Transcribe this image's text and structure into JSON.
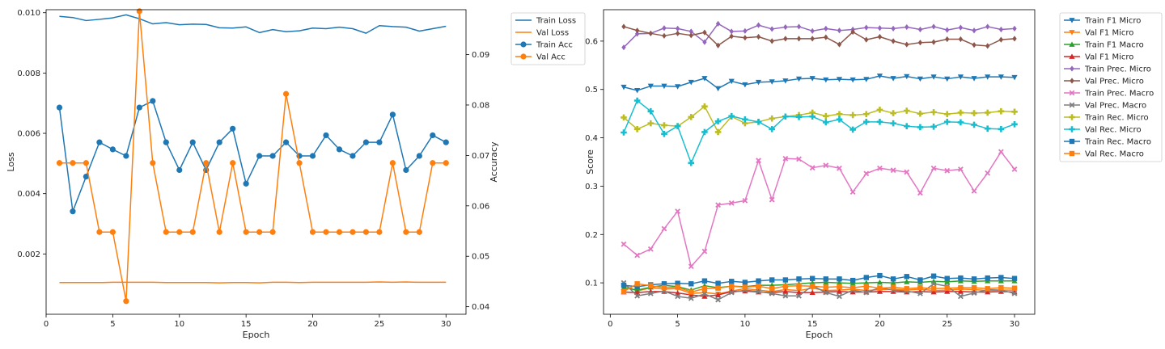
{
  "chart_data": [
    {
      "type": "line",
      "xlabel": "Epoch",
      "ylabel": "Loss",
      "y2label": "Accuracy",
      "xlim": [
        0,
        31.5
      ],
      "ylim": [
        0.0,
        0.0101
      ],
      "y2lim": [
        0.0385,
        0.0989
      ],
      "xticks": [
        0,
        5,
        10,
        15,
        20,
        25,
        30
      ],
      "yticks": [
        0.002,
        0.004,
        0.006,
        0.008,
        0.01
      ],
      "ytick_labels": [
        "0.002",
        "0.004",
        "0.006",
        "0.008",
        "0.010"
      ],
      "y2ticks": [
        0.04,
        0.05,
        0.06,
        0.07,
        0.08,
        0.09
      ],
      "y2tick_labels": [
        "0.04",
        "0.05",
        "0.06",
        "0.07",
        "0.08",
        "0.09"
      ],
      "legend_position": "outside-right",
      "x": [
        1,
        2,
        3,
        4,
        5,
        6,
        7,
        8,
        9,
        10,
        11,
        12,
        13,
        14,
        15,
        16,
        17,
        18,
        19,
        20,
        21,
        22,
        23,
        24,
        25,
        26,
        27,
        28,
        29,
        30
      ],
      "series": [
        {
          "name": "Train Loss",
          "axis": "left",
          "color": "#1f77b4",
          "marker": "none",
          "values": [
            0.00988,
            0.00984,
            0.00974,
            0.00978,
            0.00983,
            0.00993,
            0.0098,
            0.00963,
            0.00967,
            0.0096,
            0.00962,
            0.00961,
            0.0095,
            0.00949,
            0.00953,
            0.00934,
            0.00944,
            0.00937,
            0.0094,
            0.00949,
            0.00947,
            0.00952,
            0.00947,
            0.00932,
            0.00957,
            0.00954,
            0.00952,
            0.00939,
            0.00947,
            0.00955
          ]
        },
        {
          "name": "Val Loss",
          "axis": "left",
          "color": "#ff7f0e",
          "marker": "none",
          "values": [
            0.00105,
            0.00105,
            0.00105,
            0.00105,
            0.00106,
            0.00106,
            0.00106,
            0.00106,
            0.00105,
            0.00105,
            0.00105,
            0.00105,
            0.00104,
            0.00105,
            0.00105,
            0.00104,
            0.00106,
            0.00106,
            0.00105,
            0.00106,
            0.00106,
            0.00106,
            0.00106,
            0.00106,
            0.00107,
            0.00106,
            0.00107,
            0.00106,
            0.00106,
            0.00106
          ]
        },
        {
          "name": "Train Acc",
          "axis": "right",
          "color": "#1f77b4",
          "marker": "circle",
          "values": [
            0.0795,
            0.0589,
            0.0658,
            0.0726,
            0.0712,
            0.0699,
            0.0795,
            0.0808,
            0.0726,
            0.0671,
            0.0726,
            0.0671,
            0.0726,
            0.0753,
            0.0644,
            0.0699,
            0.0699,
            0.0726,
            0.0699,
            0.0699,
            0.074,
            0.0712,
            0.0699,
            0.0726,
            0.0726,
            0.0781,
            0.0671,
            0.0699,
            0.074,
            0.0726
          ]
        },
        {
          "name": "Val Acc",
          "axis": "right",
          "color": "#ff7f0e",
          "marker": "circle",
          "values": [
            0.0685,
            0.0685,
            0.0685,
            0.0548,
            0.0548,
            0.0411,
            0.0986,
            0.0685,
            0.0548,
            0.0548,
            0.0548,
            0.0685,
            0.0548,
            0.0685,
            0.0548,
            0.0548,
            0.0548,
            0.0822,
            0.0685,
            0.0548,
            0.0548,
            0.0548,
            0.0548,
            0.0548,
            0.0548,
            0.0685,
            0.0548,
            0.0548,
            0.0685,
            0.0685
          ]
        }
      ]
    },
    {
      "type": "line",
      "xlabel": "Epoch",
      "ylabel": "Score",
      "xlim": [
        -0.5,
        31.5
      ],
      "ylim": [
        0.035,
        0.665
      ],
      "xticks": [
        0,
        5,
        10,
        15,
        20,
        25,
        30
      ],
      "yticks": [
        0.1,
        0.2,
        0.3,
        0.4,
        0.5,
        0.6
      ],
      "ytick_labels": [
        "0.1",
        "0.2",
        "0.3",
        "0.4",
        "0.5",
        "0.6"
      ],
      "legend_position": "outside-right",
      "x": [
        1,
        2,
        3,
        4,
        5,
        6,
        7,
        8,
        9,
        10,
        11,
        12,
        13,
        14,
        15,
        16,
        17,
        18,
        19,
        20,
        21,
        22,
        23,
        24,
        25,
        26,
        27,
        28,
        29,
        30
      ],
      "series": [
        {
          "name": "Train F1 Micro",
          "color": "#1f77b4",
          "marker": "tri_down",
          "values": [
            0.505,
            0.498,
            0.507,
            0.507,
            0.506,
            0.515,
            0.523,
            0.502,
            0.517,
            0.51,
            0.515,
            0.516,
            0.518,
            0.522,
            0.523,
            0.52,
            0.521,
            0.52,
            0.521,
            0.528,
            0.523,
            0.527,
            0.522,
            0.526,
            0.522,
            0.526,
            0.523,
            0.526,
            0.526,
            0.525
          ]
        },
        {
          "name": "Val F1 Micro",
          "color": "#ff7f0e",
          "marker": "tri_down",
          "values": [
            0.095,
            0.083,
            0.09,
            0.087,
            0.088,
            0.078,
            0.08,
            0.077,
            0.083,
            0.088,
            0.085,
            0.082,
            0.086,
            0.084,
            0.089,
            0.084,
            0.085,
            0.087,
            0.084,
            0.086,
            0.087,
            0.085,
            0.087,
            0.084,
            0.085,
            0.087,
            0.086,
            0.084,
            0.085,
            0.085
          ]
        },
        {
          "name": "Train F1 Macro",
          "color": "#2ca02c",
          "marker": "tri_up",
          "values": [
            0.09,
            0.085,
            0.091,
            0.095,
            0.092,
            0.085,
            0.094,
            0.09,
            0.093,
            0.092,
            0.095,
            0.095,
            0.096,
            0.098,
            0.1,
            0.101,
            0.1,
            0.099,
            0.1,
            0.101,
            0.1,
            0.102,
            0.101,
            0.103,
            0.102,
            0.104,
            0.103,
            0.104,
            0.104,
            0.104
          ]
        },
        {
          "name": "Val F1 Micro",
          "color": "#d62728",
          "marker": "tri_up",
          "values": [
            0.081,
            0.08,
            0.082,
            0.082,
            0.079,
            0.075,
            0.072,
            0.075,
            0.082,
            0.083,
            0.081,
            0.08,
            0.082,
            0.08,
            0.08,
            0.081,
            0.082,
            0.081,
            0.081,
            0.082,
            0.082,
            0.081,
            0.082,
            0.081,
            0.082,
            0.082,
            0.081,
            0.081,
            0.082,
            0.081
          ]
        },
        {
          "name": "Train Prec. Micro",
          "color": "#9467bd",
          "marker": "diamond",
          "values": [
            0.587,
            0.615,
            0.616,
            0.627,
            0.626,
            0.62,
            0.598,
            0.636,
            0.62,
            0.621,
            0.633,
            0.625,
            0.629,
            0.63,
            0.621,
            0.626,
            0.622,
            0.624,
            0.628,
            0.627,
            0.626,
            0.629,
            0.624,
            0.63,
            0.623,
            0.628,
            0.622,
            0.63,
            0.624,
            0.626
          ]
        },
        {
          "name": "Val Prec. Micro",
          "color": "#8c564b",
          "marker": "diamond",
          "values": [
            0.63,
            0.622,
            0.616,
            0.611,
            0.616,
            0.612,
            0.618,
            0.591,
            0.61,
            0.607,
            0.609,
            0.6,
            0.605,
            0.605,
            0.605,
            0.608,
            0.593,
            0.619,
            0.603,
            0.609,
            0.6,
            0.593,
            0.597,
            0.598,
            0.604,
            0.604,
            0.592,
            0.59,
            0.603,
            0.605
          ]
        },
        {
          "name": "Train Prec. Macro",
          "color": "#e377c2",
          "marker": "x",
          "values": [
            0.18,
            0.157,
            0.17,
            0.212,
            0.248,
            0.134,
            0.165,
            0.261,
            0.265,
            0.27,
            0.353,
            0.272,
            0.357,
            0.356,
            0.338,
            0.343,
            0.337,
            0.288,
            0.326,
            0.337,
            0.333,
            0.329,
            0.286,
            0.337,
            0.332,
            0.335,
            0.29,
            0.327,
            0.371,
            0.335
          ]
        },
        {
          "name": "Val Prec. Macro",
          "color": "#7f7f7f",
          "marker": "x",
          "values": [
            0.1,
            0.073,
            0.078,
            0.083,
            0.072,
            0.068,
            0.077,
            0.065,
            0.08,
            0.085,
            0.082,
            0.078,
            0.073,
            0.073,
            0.094,
            0.08,
            0.072,
            0.085,
            0.08,
            0.09,
            0.085,
            0.083,
            0.078,
            0.098,
            0.093,
            0.072,
            0.079,
            0.086,
            0.085,
            0.078
          ]
        },
        {
          "name": "Train Rec. Micro",
          "color": "#bcbd22",
          "marker": "plus",
          "values": [
            0.442,
            0.418,
            0.43,
            0.426,
            0.424,
            0.443,
            0.465,
            0.412,
            0.444,
            0.43,
            0.433,
            0.44,
            0.444,
            0.447,
            0.452,
            0.445,
            0.449,
            0.447,
            0.449,
            0.458,
            0.451,
            0.456,
            0.45,
            0.453,
            0.449,
            0.452,
            0.451,
            0.452,
            0.455,
            0.454
          ]
        },
        {
          "name": "Val Rec. Micro",
          "color": "#17becf",
          "marker": "plus",
          "values": [
            0.411,
            0.477,
            0.455,
            0.408,
            0.424,
            0.348,
            0.412,
            0.434,
            0.445,
            0.438,
            0.433,
            0.418,
            0.444,
            0.443,
            0.444,
            0.432,
            0.438,
            0.417,
            0.433,
            0.433,
            0.43,
            0.424,
            0.422,
            0.423,
            0.433,
            0.432,
            0.427,
            0.419,
            0.418,
            0.428
          ]
        },
        {
          "name": "Train Rec. Macro",
          "color": "#1f77b4",
          "marker": "square",
          "values": [
            0.095,
            0.092,
            0.096,
            0.098,
            0.099,
            0.098,
            0.104,
            0.099,
            0.103,
            0.101,
            0.104,
            0.106,
            0.106,
            0.108,
            0.109,
            0.108,
            0.108,
            0.105,
            0.111,
            0.115,
            0.108,
            0.113,
            0.106,
            0.114,
            0.109,
            0.11,
            0.108,
            0.11,
            0.111,
            0.109
          ]
        },
        {
          "name": "Val Rec. Macro",
          "color": "#ff7f0e",
          "marker": "square",
          "values": [
            0.082,
            0.098,
            0.094,
            0.09,
            0.091,
            0.081,
            0.088,
            0.089,
            0.093,
            0.091,
            0.093,
            0.088,
            0.093,
            0.094,
            0.093,
            0.091,
            0.092,
            0.09,
            0.093,
            0.089,
            0.091,
            0.088,
            0.09,
            0.088,
            0.089,
            0.09,
            0.09,
            0.088,
            0.09,
            0.089
          ]
        }
      ]
    }
  ]
}
